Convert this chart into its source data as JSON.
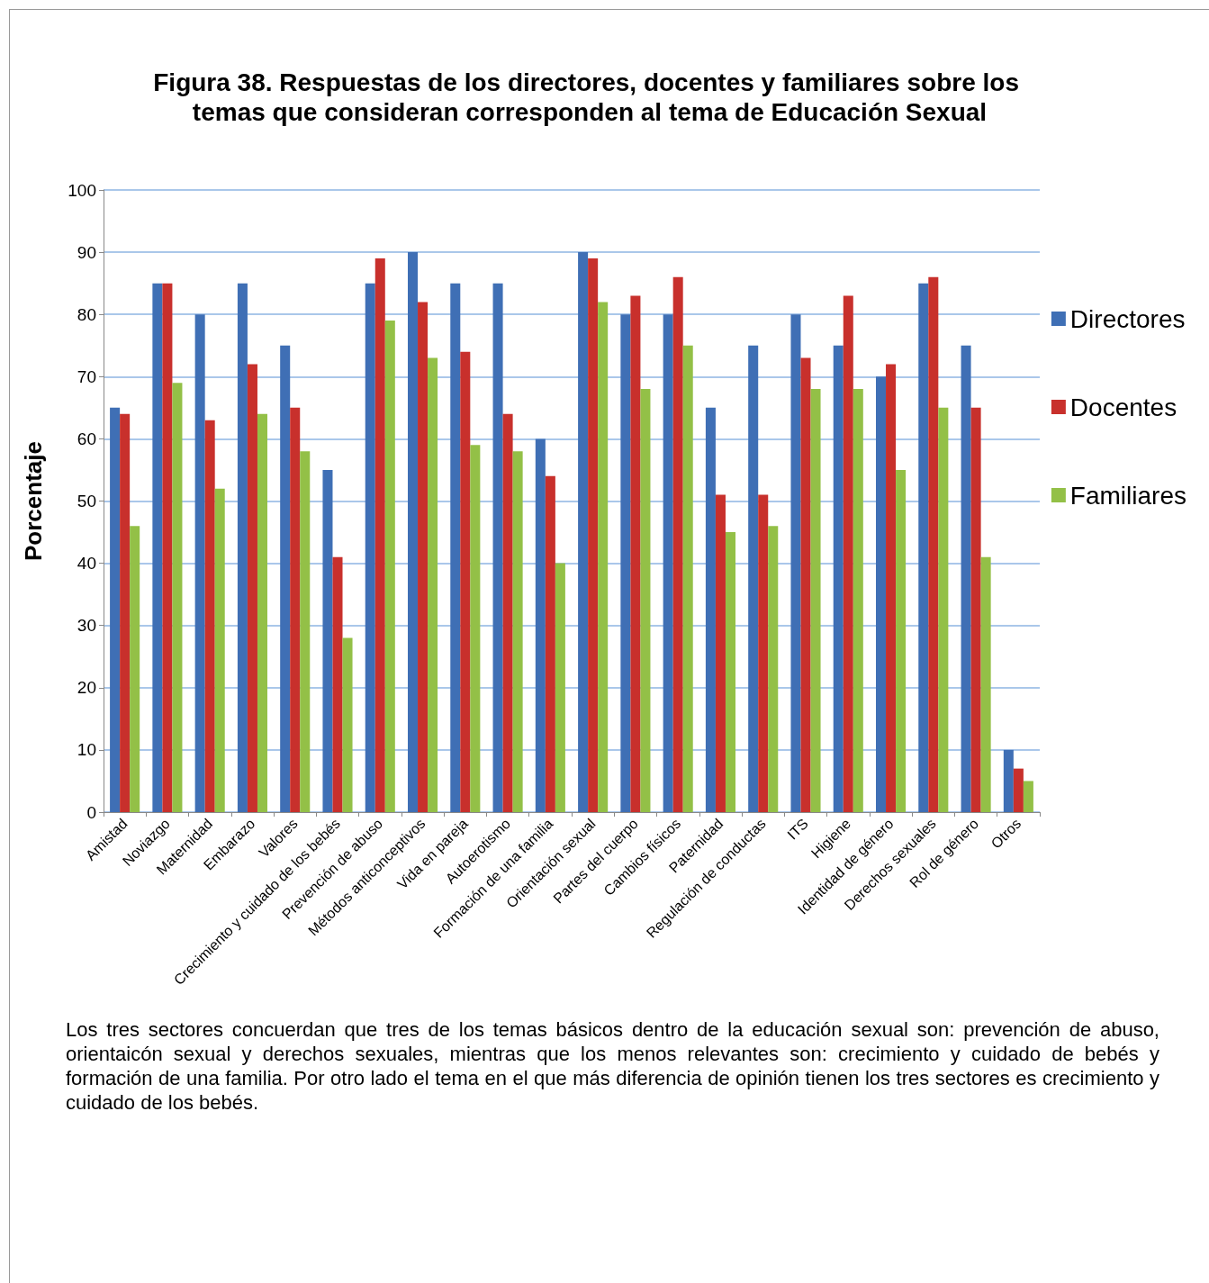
{
  "chart_data": {
    "type": "bar",
    "title": "Figura 38. Respuestas de los directores, docentes y familiares sobre los temas que consideran corresponden al tema de Educación Sexual",
    "ylabel": "Porcentaje",
    "categories": [
      "Amistad",
      "Noviazgo",
      "Maternidad",
      "Embarazo",
      "Valores",
      "Crecimiento y cuidado de los bebés",
      "Prevención de abuso",
      "Métodos anticonceptivos",
      "Vida en pareja",
      "Autoerotismo",
      "Formación de una familia",
      "Orientación sexual",
      "Partes del cuerpo",
      "Cambios físicos",
      "Paternidad",
      "Regulación de conductas",
      "ITS",
      "Higiene",
      "Identidad de género",
      "Derechos sexuales",
      "Rol de género",
      "Otros"
    ],
    "series": [
      {
        "name": "Directores",
        "color": "#3f6fb5",
        "values": [
          65,
          85,
          80,
          85,
          75,
          55,
          85,
          90,
          85,
          85,
          60,
          90,
          80,
          80,
          65,
          75,
          80,
          75,
          70,
          85,
          75,
          10
        ]
      },
      {
        "name": "Docentes",
        "color": "#c8302c",
        "values": [
          64,
          85,
          63,
          72,
          65,
          41,
          89,
          82,
          74,
          64,
          54,
          89,
          83,
          86,
          51,
          51,
          73,
          83,
          72,
          86,
          65,
          7
        ]
      },
      {
        "name": "Familiares",
        "color": "#93c047",
        "values": [
          46,
          69,
          52,
          64,
          58,
          28,
          79,
          73,
          59,
          58,
          40,
          82,
          68,
          75,
          45,
          46,
          68,
          68,
          55,
          65,
          41,
          5
        ]
      }
    ],
    "ylim": [
      0,
      100
    ],
    "yticks": [
      0,
      10,
      20,
      30,
      40,
      50,
      60,
      70,
      80,
      90,
      100
    ],
    "grid": "y",
    "legend": "right",
    "annotations": [
      "Los tres sectores concuerdan que tres de los temas básicos dentro de la educación sexual son: prevención de abuso, orientaicón sexual y derechos sexuales, mientras que los menos relevantes son: crecimiento y cuidado de bebés y formación de una familia. Por otro lado el tema en el que más diferencia de opinión tienen los tres sectores es crecimiento y cuidado de los bebés."
    ]
  }
}
